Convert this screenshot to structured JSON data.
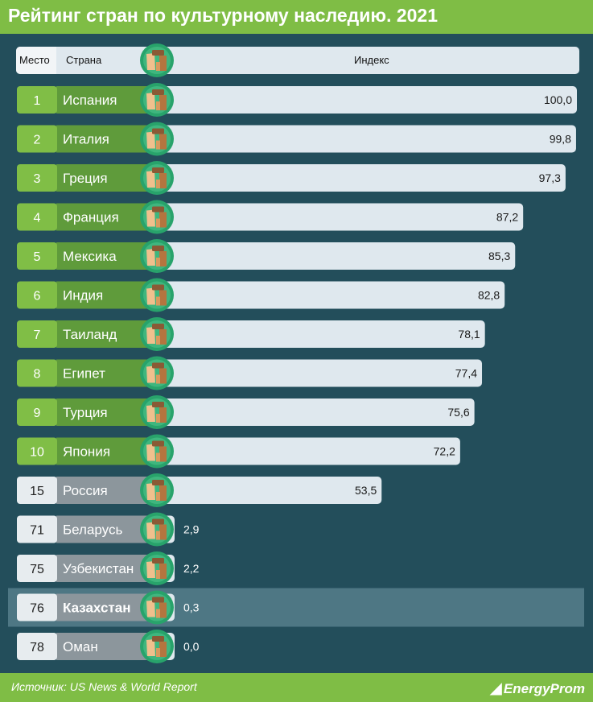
{
  "title": "Рейтинг стран по культурному наследию. 2021",
  "header": {
    "place": "Место",
    "country": "Страна",
    "index": "Индекс"
  },
  "footer": {
    "source": "Источник: US News & World Report",
    "brand": "EnergyProm"
  },
  "colors": {
    "title_bg": "#7fbd45",
    "page_bg": "#234e5b",
    "top10_place": "#80be46",
    "top10_country": "#5f9b3b",
    "other_place": "#e7ecef",
    "other_country": "#8c969c",
    "bar": "#dfe8ee",
    "highlight_row": "#4e7784",
    "icon_circle": "#28a36b"
  },
  "chart_data": {
    "type": "bar",
    "orientation": "horizontal",
    "title": "Рейтинг стран по культурному наследию. 2021",
    "xlabel": "Индекс",
    "ylabel": "Страна",
    "xlim": [
      0,
      100
    ],
    "categories": [
      "Испания",
      "Италия",
      "Греция",
      "Франция",
      "Мексика",
      "Индия",
      "Таиланд",
      "Египет",
      "Турция",
      "Япония",
      "Россия",
      "Беларусь",
      "Узбекистан",
      "Казахстан",
      "Оман"
    ],
    "ranks": [
      "1",
      "2",
      "3",
      "4",
      "5",
      "6",
      "7",
      "8",
      "9",
      "10",
      "15",
      "71",
      "75",
      "76",
      "78"
    ],
    "values": [
      100.0,
      99.8,
      97.3,
      87.2,
      85.3,
      82.8,
      78.1,
      77.4,
      75.6,
      72.2,
      53.5,
      2.9,
      2.2,
      0.3,
      0.0
    ],
    "value_labels": [
      "100,0",
      "99,8",
      "97,3",
      "87,2",
      "85,3",
      "82,8",
      "78,1",
      "77,4",
      "75,6",
      "72,2",
      "53,5",
      "2,9",
      "2,2",
      "0,3",
      "0,0"
    ],
    "highlighted": "Казахстан"
  }
}
